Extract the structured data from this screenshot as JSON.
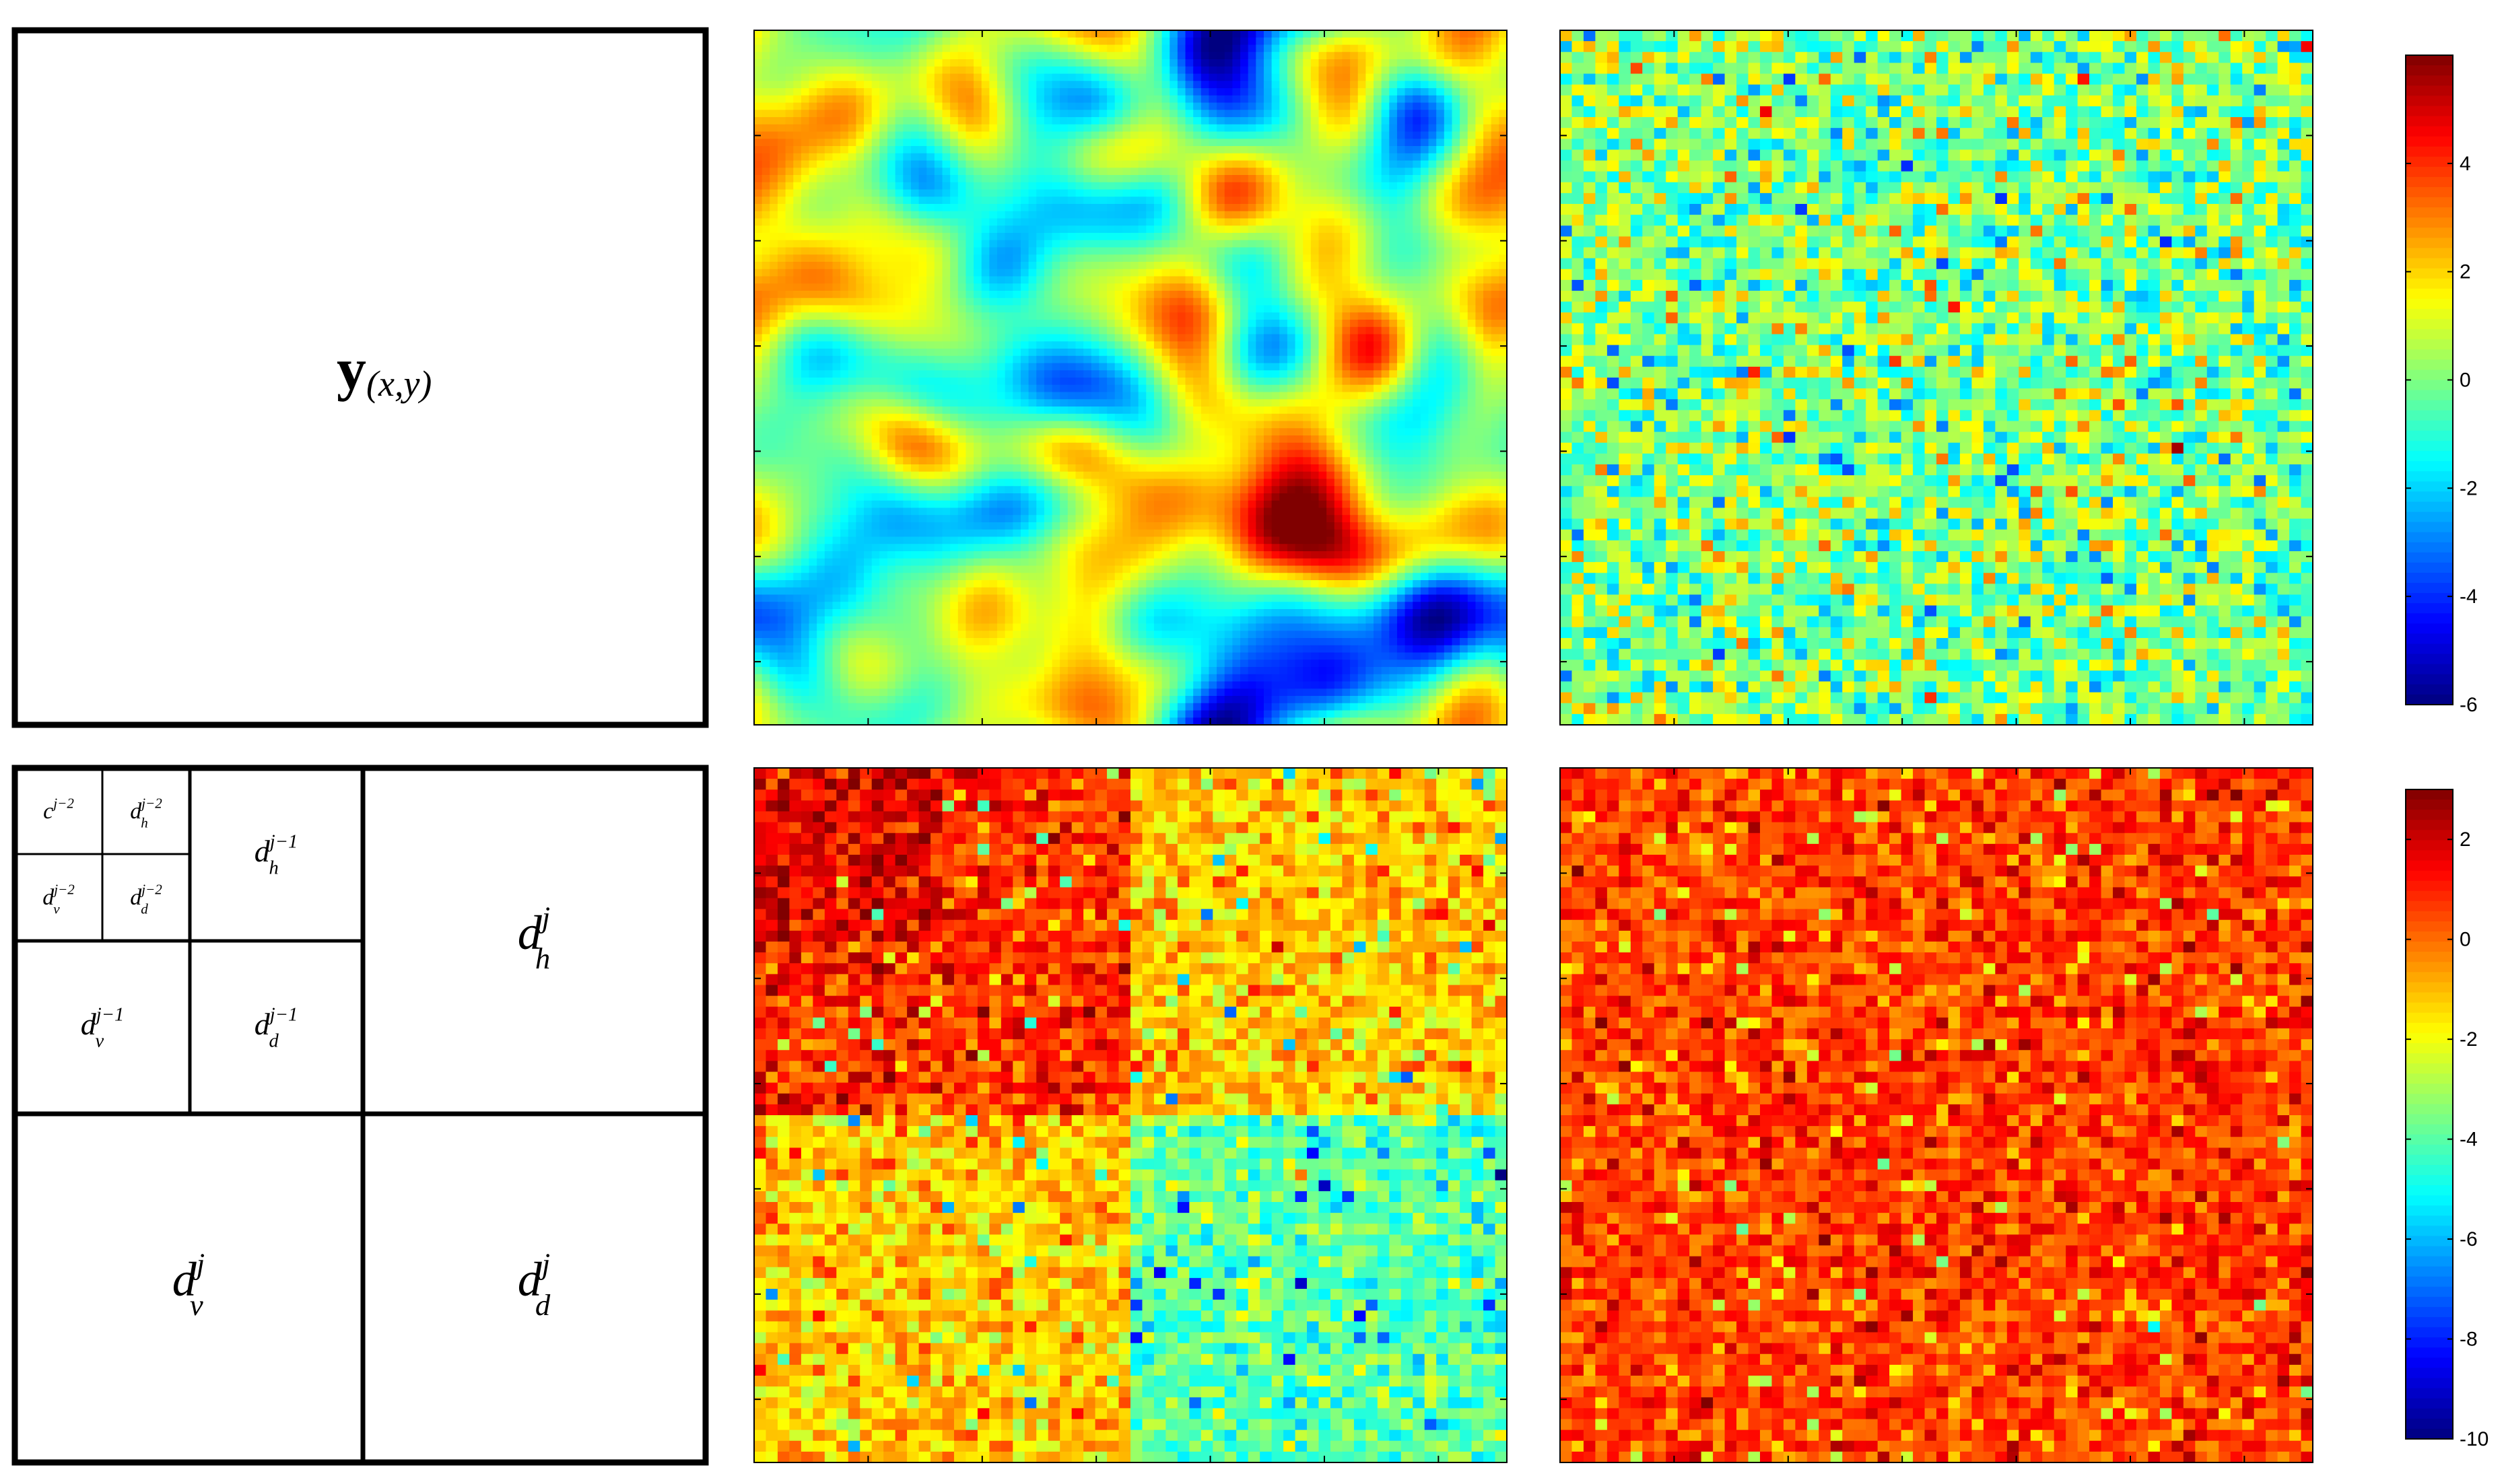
{
  "top_diagram": {
    "label_main": "y",
    "label_sub": "(x,y)"
  },
  "bottom_diagram": {
    "cells": [
      {
        "base": "c",
        "sup": "j−2",
        "sub": ""
      },
      {
        "base": "d",
        "sup": "j−2",
        "sub": "h"
      },
      {
        "base": "d",
        "sup": "j−2",
        "sub": "v"
      },
      {
        "base": "d",
        "sup": "j−2",
        "sub": "d"
      },
      {
        "base": "d",
        "sup": "j−1",
        "sub": "h"
      },
      {
        "base": "d",
        "sup": "j−1",
        "sub": "v"
      },
      {
        "base": "d",
        "sup": "j−1",
        "sub": "d"
      },
      {
        "base": "d",
        "sup": "j",
        "sub": "h"
      },
      {
        "base": "d",
        "sup": "j",
        "sub": "v"
      },
      {
        "base": "d",
        "sup": "j",
        "sub": "d"
      }
    ]
  },
  "colorbars": {
    "top": {
      "min": -6,
      "max": 6,
      "ticks": [
        "4",
        "2",
        "0",
        "-2",
        "-4",
        "-6"
      ],
      "tick_values": [
        4,
        2,
        0,
        -2,
        -4,
        -6
      ]
    },
    "bottom": {
      "min": -10,
      "max": 3,
      "ticks": [
        "2",
        "0",
        "-2",
        "-4",
        "-6",
        "-8",
        "-10"
      ],
      "tick_values": [
        2,
        0,
        -2,
        -4,
        -6,
        -8,
        -10
      ]
    }
  },
  "colormap": "jet"
}
